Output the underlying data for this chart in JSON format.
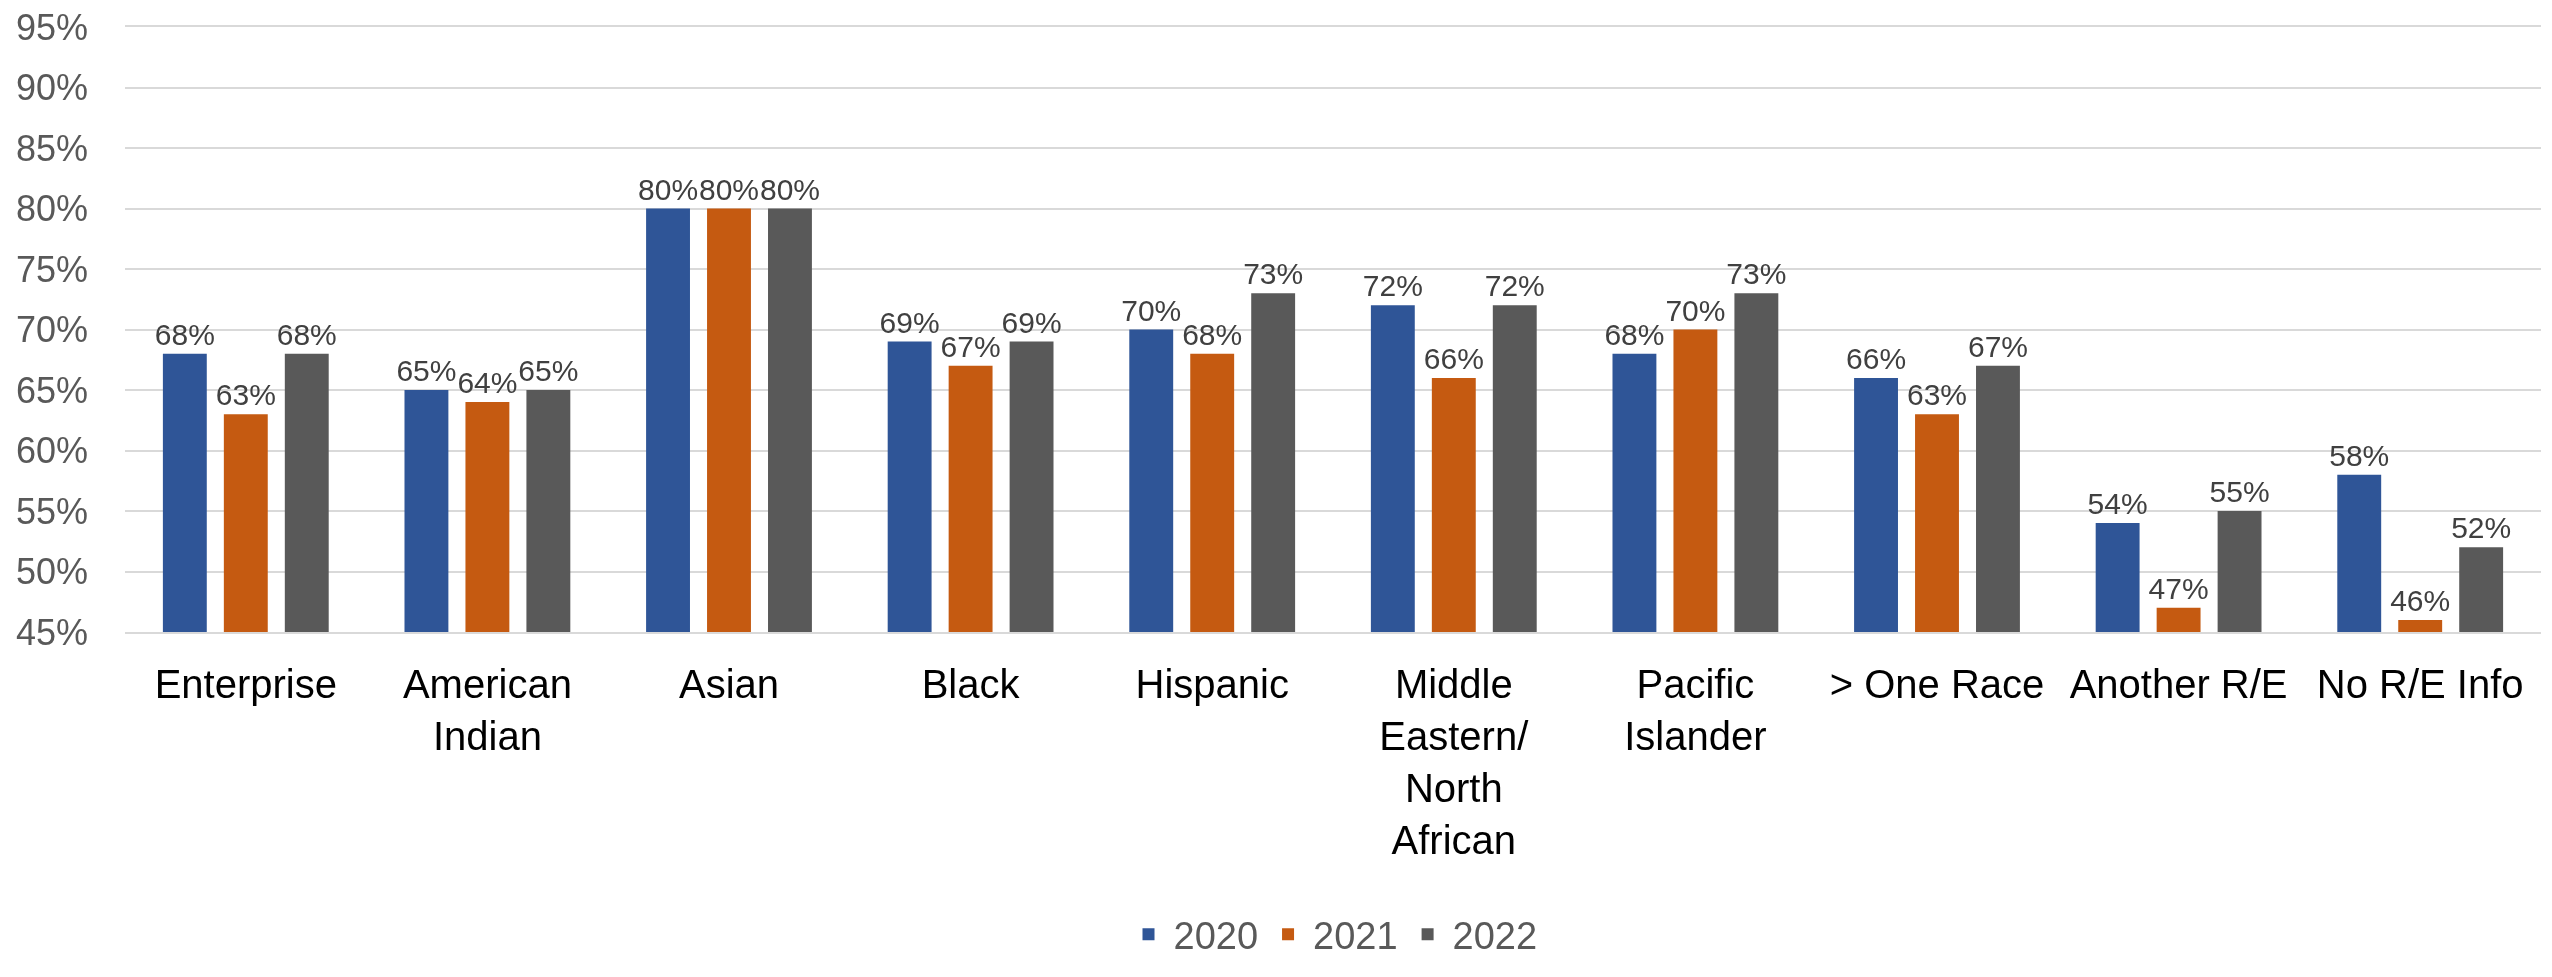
{
  "chart_data": {
    "type": "bar",
    "categories": [
      "Enterprise",
      "American Indian",
      "Asian",
      "Black",
      "Hispanic",
      "Middle Eastern/ North African",
      "Pacific Islander",
      "> One Race",
      "Another R/E",
      "No R/E Info"
    ],
    "series": [
      {
        "name": "2020",
        "color": "#2f5597",
        "values": [
          68,
          65,
          80,
          69,
          70,
          72,
          68,
          66,
          54,
          58
        ],
        "value_labels": [
          "68%",
          "65%",
          "80%",
          "69%",
          "70%",
          "72%",
          "68%",
          "66%",
          "54%",
          "58%"
        ]
      },
      {
        "name": "2021",
        "color": "#c55a11",
        "values": [
          63,
          64,
          80,
          67,
          68,
          66,
          70,
          63,
          47,
          46
        ],
        "value_labels": [
          "63%",
          "64%",
          "80%",
          "67%",
          "68%",
          "66%",
          "70%",
          "63%",
          "47%",
          "46%"
        ]
      },
      {
        "name": "2022",
        "color": "#595959",
        "values": [
          68,
          65,
          80,
          69,
          73,
          72,
          73,
          67,
          55,
          52
        ],
        "value_labels": [
          "68%",
          "65%",
          "80%",
          "69%",
          "73%",
          "72%",
          "73%",
          "67%",
          "55%",
          "52%"
        ]
      }
    ],
    "ylim": [
      45,
      95
    ],
    "yticks": [
      {
        "value": 45,
        "label": "45%"
      },
      {
        "value": 50,
        "label": "50%"
      },
      {
        "value": 55,
        "label": "55%"
      },
      {
        "value": 60,
        "label": "60%"
      },
      {
        "value": 65,
        "label": "65%"
      },
      {
        "value": 70,
        "label": "70%"
      },
      {
        "value": 75,
        "label": "75%"
      },
      {
        "value": 80,
        "label": "80%"
      },
      {
        "value": 85,
        "label": "85%"
      },
      {
        "value": 90,
        "label": "90%"
      },
      {
        "value": 95,
        "label": "95%"
      }
    ],
    "grid": "y",
    "legend": "bottom"
  }
}
